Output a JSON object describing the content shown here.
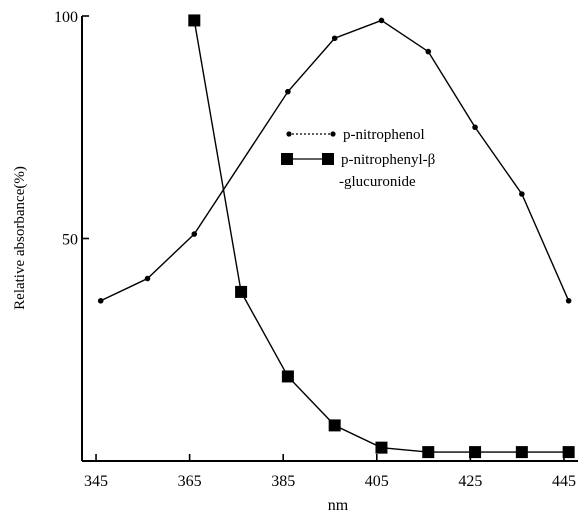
{
  "chart_data": {
    "type": "line",
    "title": "",
    "xlabel": "nm",
    "ylabel": "Relative absorbance(%)",
    "x_ticks": [
      345,
      365,
      385,
      405,
      425,
      445
    ],
    "y_ticks": [
      50,
      100
    ],
    "xlim": [
      342,
      448
    ],
    "ylim": [
      0,
      100
    ],
    "grid": false,
    "legend_position": "center-right",
    "series": [
      {
        "name": "p-nitrophenol",
        "marker": "circle",
        "x": [
          346,
          356,
          366,
          386,
          396,
          406,
          416,
          426,
          436,
          446
        ],
        "y": [
          36,
          41,
          51,
          83,
          95,
          99,
          92,
          75,
          60,
          36
        ]
      },
      {
        "name": "p-nitrophenyl-β-glucuronide",
        "legend_lines": [
          "p-nitrophenyl-β",
          "-glucuronide"
        ],
        "marker": "square",
        "x": [
          366,
          376,
          386,
          396,
          406,
          416,
          426,
          436,
          446
        ],
        "y": [
          99,
          38,
          19,
          8,
          3,
          2,
          2,
          2,
          2
        ]
      }
    ]
  }
}
